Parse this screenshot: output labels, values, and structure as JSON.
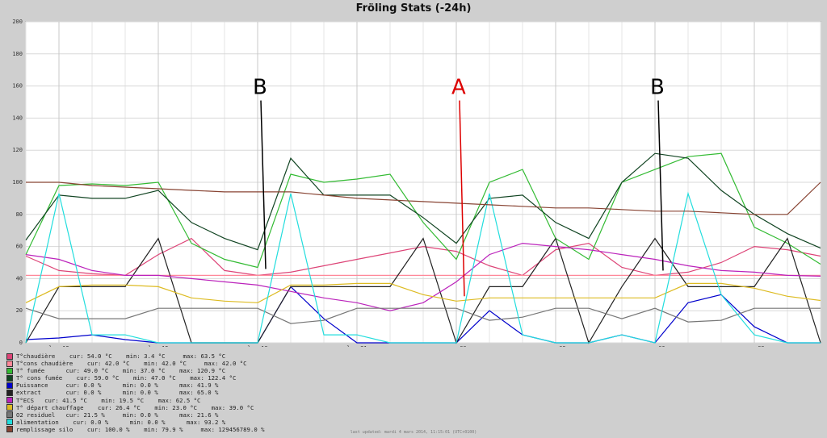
{
  "chart_data": {
    "type": "line",
    "title": "Fröling Stats (-24h)",
    "ylim": [
      0,
      200
    ],
    "y_ticks": [
      "0",
      "20",
      "40",
      "60",
      "80",
      "100",
      "120",
      "140",
      "160",
      "180",
      "200"
    ],
    "x_ticks": [
      "lun.12",
      "lun.15",
      "lun.18",
      "lun.21",
      "mar.00",
      "mar.03",
      "mar.06",
      "mar.09"
    ],
    "grid": true,
    "x": [
      "lun.11",
      "lun.12",
      "lun.13",
      "lun.14",
      "lun.15",
      "lun.16",
      "lun.17",
      "lun.18",
      "lun.19",
      "lun.20",
      "lun.21",
      "lun.22",
      "lun.23",
      "mar.00",
      "mar.01",
      "mar.02",
      "mar.03",
      "mar.04",
      "mar.05",
      "mar.06",
      "mar.07",
      "mar.08",
      "mar.09",
      "mar.10",
      "mar.11"
    ],
    "series": [
      {
        "name": "T°chaudière",
        "color": "#dd4477",
        "values": [
          54,
          45,
          43,
          42,
          55,
          65,
          45,
          42,
          44,
          48,
          52,
          56,
          60,
          57,
          48,
          42,
          58,
          62,
          47,
          42,
          44,
          50,
          60,
          58,
          54
        ]
      },
      {
        "name": "T°cons chaudière",
        "color": "#ff8899",
        "values": [
          42,
          42,
          42,
          42,
          42,
          42,
          42,
          42,
          42,
          42,
          42,
          42,
          42,
          42,
          42,
          42,
          42,
          42,
          42,
          42,
          42,
          42,
          42,
          42,
          42
        ]
      },
      {
        "name": "T° fumée",
        "color": "#33bb33",
        "values": [
          55,
          98,
          99,
          98,
          100,
          62,
          52,
          47,
          105,
          100,
          102,
          105,
          75,
          52,
          100,
          108,
          65,
          52,
          100,
          108,
          116,
          118,
          72,
          62,
          49
        ]
      },
      {
        "name": "T° cons fumée",
        "color": "#114422",
        "values": [
          64,
          92,
          90,
          90,
          95,
          75,
          65,
          58,
          115,
          92,
          92,
          92,
          78,
          62,
          90,
          92,
          75,
          65,
          100,
          118,
          115,
          95,
          80,
          68,
          59
        ]
      },
      {
        "name": "Puissance",
        "color": "#0000cc",
        "values": [
          2,
          3,
          5,
          2,
          0,
          0,
          0,
          0,
          35,
          15,
          0,
          0,
          0,
          0,
          20,
          5,
          0,
          0,
          5,
          0,
          25,
          30,
          10,
          0,
          0
        ]
      },
      {
        "name": "extract",
        "color": "#222222",
        "values": [
          0,
          35,
          35,
          35,
          65,
          0,
          0,
          0,
          35,
          35,
          35,
          35,
          65,
          0,
          35,
          35,
          65,
          0,
          35,
          65,
          35,
          35,
          35,
          65,
          0
        ]
      },
      {
        "name": "T°ECS",
        "color": "#bb22bb",
        "values": [
          55,
          52,
          45,
          42,
          42,
          40,
          38,
          36,
          32,
          28,
          25,
          20,
          25,
          38,
          55,
          62,
          60,
          58,
          55,
          52,
          48,
          45,
          44,
          42,
          41.5
        ]
      },
      {
        "name": "T° départ chauffage",
        "color": "#ddbb22",
        "values": [
          25,
          35,
          36,
          36,
          35,
          28,
          26,
          25,
          36,
          36,
          37,
          37,
          30,
          26,
          28,
          28,
          28,
          28,
          28,
          28,
          37,
          37,
          34,
          29,
          26.4
        ]
      },
      {
        "name": "O2 residuel",
        "color": "#777777",
        "values": [
          21.5,
          15,
          15,
          15,
          21.5,
          21.5,
          21.5,
          21.5,
          12,
          14,
          21.5,
          21.5,
          21.5,
          21.5,
          14,
          16,
          21.5,
          21.5,
          15,
          21.5,
          13,
          14,
          21.5,
          21.5,
          21.5
        ]
      },
      {
        "name": "alimentation",
        "color": "#22dddd",
        "values": [
          0,
          93,
          5,
          5,
          0,
          0,
          0,
          0,
          93,
          5,
          5,
          0,
          0,
          0,
          93,
          5,
          0,
          0,
          5,
          0,
          93,
          30,
          5,
          0,
          0
        ]
      },
      {
        "name": "remplissage silo",
        "color": "#884433",
        "values": [
          100,
          100,
          98,
          97,
          96,
          95,
          94,
          94,
          94,
          92,
          90,
          89,
          88,
          87,
          86,
          85,
          84,
          84,
          83,
          82,
          82,
          81,
          80,
          80,
          100
        ]
      }
    ],
    "annotations": [
      {
        "text": "B",
        "color": "#000000",
        "label_at": [
          "lun.18",
          155
        ],
        "point_at": [
          "lun.18",
          44
        ]
      },
      {
        "text": "A",
        "color": "#dd0000",
        "label_at": [
          "mar.00",
          155
        ],
        "point_at": [
          "mar.00",
          27
        ]
      },
      {
        "text": "B",
        "color": "#000000",
        "label_at": [
          "mar.06",
          155
        ],
        "point_at": [
          "mar.06",
          43
        ]
      }
    ]
  },
  "legend": [
    {
      "label": "T°chaudière    cur: 54.0 °C    min: 3.4 °C     max: 63.5 °C",
      "color": "#dd4477"
    },
    {
      "label": "T°cons chaudière    cur: 42.0 °C    min: 42.0 °C     max: 42.0 °C",
      "color": "#ff8899"
    },
    {
      "label": "T° fumée      cur: 49.0 °C    min: 37.0 °C    max: 120.9 °C",
      "color": "#33bb33"
    },
    {
      "label": "T° cons fumée    cur: 59.0 °C    min: 47.0 °C    max: 122.4 °C",
      "color": "#114422"
    },
    {
      "label": "Puissance     cur: 0.0 %      min: 0.0 %      max: 41.9 %",
      "color": "#0000cc"
    },
    {
      "label": "extract       cur: 0.0 %      min: 0.0 %      max: 65.0 %",
      "color": "#222222"
    },
    {
      "label": "T°ECS   cur: 41.5 °C    min: 19.5 °C    max: 62.5 °C",
      "color": "#bb22bb"
    },
    {
      "label": "T° départ chauffage    cur: 26.4 °C    min: 23.0 °C    max: 39.0 °C",
      "color": "#ddbb22"
    },
    {
      "label": "O2 residuel   cur: 21.5 %     min: 0.0 %      max: 21.6 %",
      "color": "#777777"
    },
    {
      "label": "alimentation    cur: 0.0 %      min: 0.0 %      max: 93.2 %",
      "color": "#22dddd"
    },
    {
      "label": "remplissage silo    cur: 100.0 %    min: 79.9 %     max: 129456789.0 %",
      "color": "#884433"
    }
  ],
  "footer": "last updated: mardi 4 mars 2014, 11:15:01 (UTC+0100)"
}
